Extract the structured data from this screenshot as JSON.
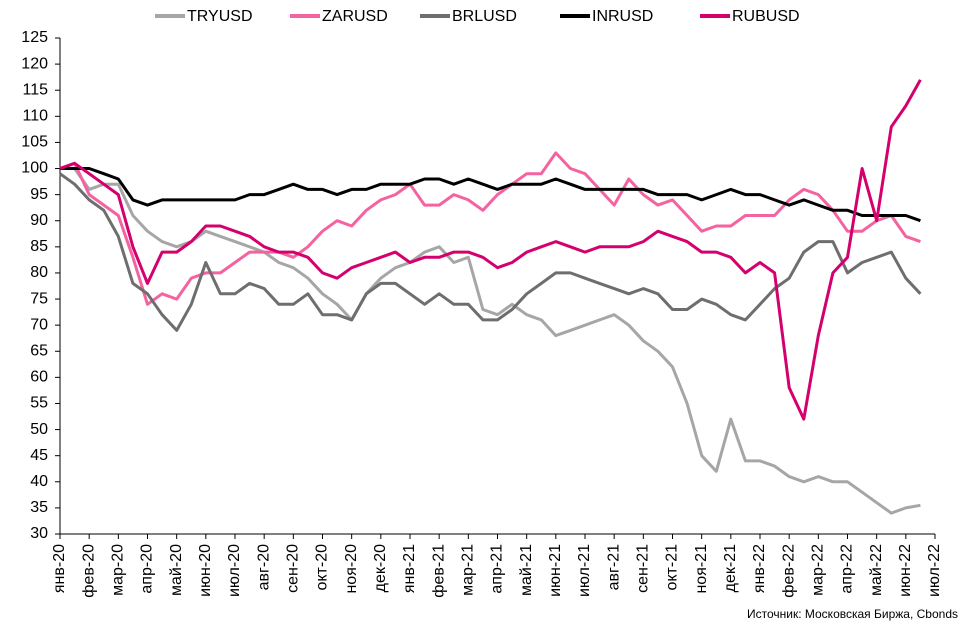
{
  "chart_data": {
    "type": "line",
    "source": "Источник: Московская Биржа, Cbonds",
    "x": [
      0,
      0.5,
      1,
      1.5,
      2,
      2.5,
      3,
      3.5,
      4,
      4.5,
      5,
      5.5,
      6,
      6.5,
      7,
      7.5,
      8,
      8.5,
      9,
      9.5,
      10,
      10.5,
      11,
      11.5,
      12,
      12.5,
      13,
      13.5,
      14,
      14.5,
      15,
      15.5,
      16,
      16.5,
      17,
      17.5,
      18,
      18.5,
      19,
      19.5,
      20,
      20.5,
      21,
      21.5,
      22,
      22.5,
      23,
      23.5,
      24,
      24.5,
      25,
      25.5,
      26,
      26.5,
      27,
      27.5,
      28,
      28.5,
      29,
      29.5
    ],
    "series": [
      {
        "name": "TRYUSD",
        "color": "#a6a6a6",
        "values": [
          100,
          100,
          96,
          97,
          97,
          91,
          88,
          86,
          85,
          86,
          88,
          87,
          86,
          85,
          84,
          82,
          81,
          79,
          76,
          74,
          71,
          76,
          79,
          81,
          82,
          84,
          85,
          82,
          83,
          73,
          72,
          74,
          72,
          71,
          68,
          69,
          70,
          71,
          72,
          70,
          67,
          65,
          62,
          55,
          45,
          42,
          52,
          44,
          44,
          43,
          41,
          40,
          41,
          40,
          40,
          38,
          36,
          34,
          35,
          35.5
        ]
      },
      {
        "name": "ZARUSD",
        "color": "#f4639f",
        "values": [
          100,
          101,
          95,
          93,
          91,
          83,
          74,
          76,
          75,
          79,
          80,
          80,
          82,
          84,
          84,
          84,
          83,
          85,
          88,
          90,
          89,
          92,
          94,
          95,
          97,
          93,
          93,
          95,
          94,
          92,
          95,
          97,
          99,
          99,
          103,
          100,
          99,
          96,
          93,
          98,
          95,
          93,
          94,
          91,
          88,
          89,
          89,
          91,
          91,
          91,
          94,
          96,
          95,
          92,
          88,
          88,
          90,
          91,
          87,
          86
        ]
      },
      {
        "name": "BRLUSD",
        "color": "#6e6e6e",
        "values": [
          99,
          97,
          94,
          92,
          87,
          78,
          76,
          72,
          69,
          74,
          82,
          76,
          76,
          78,
          77,
          74,
          74,
          76,
          72,
          72,
          71,
          76,
          78,
          78,
          76,
          74,
          76,
          74,
          74,
          71,
          71,
          73,
          76,
          78,
          80,
          80,
          79,
          78,
          77,
          76,
          77,
          76,
          73,
          73,
          75,
          74,
          72,
          71,
          74,
          77,
          79,
          84,
          86,
          86,
          80,
          82,
          83,
          84,
          79,
          76
        ]
      },
      {
        "name": "INRUSD",
        "color": "#000000",
        "values": [
          100,
          100,
          100,
          99,
          98,
          94,
          93,
          94,
          94,
          94,
          94,
          94,
          94,
          95,
          95,
          96,
          97,
          96,
          96,
          95,
          96,
          96,
          97,
          97,
          97,
          98,
          98,
          97,
          98,
          97,
          96,
          97,
          97,
          97,
          98,
          97,
          96,
          96,
          96,
          96,
          96,
          95,
          95,
          95,
          94,
          95,
          96,
          95,
          95,
          94,
          93,
          94,
          93,
          92,
          92,
          91,
          91,
          91,
          91,
          90
        ]
      },
      {
        "name": "RUBUSD",
        "color": "#d4006e",
        "values": [
          100,
          101,
          99,
          97,
          95,
          85,
          78,
          84,
          84,
          86,
          89,
          89,
          88,
          87,
          85,
          84,
          84,
          83,
          80,
          79,
          81,
          82,
          83,
          84,
          82,
          83,
          83,
          84,
          84,
          83,
          81,
          82,
          84,
          85,
          86,
          85,
          84,
          85,
          85,
          85,
          86,
          88,
          87,
          86,
          84,
          84,
          83,
          80,
          82,
          80,
          58,
          52,
          68,
          80,
          83,
          100,
          90,
          108,
          112,
          117
        ]
      }
    ],
    "xlim": [
      0,
      30
    ],
    "xticks": [
      {
        "value": 0,
        "label": "янв-20"
      },
      {
        "value": 1,
        "label": "фев-20"
      },
      {
        "value": 2,
        "label": "мар-20"
      },
      {
        "value": 3,
        "label": "апр-20"
      },
      {
        "value": 4,
        "label": "май-20"
      },
      {
        "value": 5,
        "label": "июн-20"
      },
      {
        "value": 6,
        "label": "июл-20"
      },
      {
        "value": 7,
        "label": "авг-20"
      },
      {
        "value": 8,
        "label": "сен-20"
      },
      {
        "value": 9,
        "label": "окт-20"
      },
      {
        "value": 10,
        "label": "ноя-20"
      },
      {
        "value": 11,
        "label": "дек-20"
      },
      {
        "value": 12,
        "label": "янв-21"
      },
      {
        "value": 13,
        "label": "фев-21"
      },
      {
        "value": 14,
        "label": "мар-21"
      },
      {
        "value": 15,
        "label": "апр-21"
      },
      {
        "value": 16,
        "label": "май-21"
      },
      {
        "value": 17,
        "label": "июн-21"
      },
      {
        "value": 18,
        "label": "июл-21"
      },
      {
        "value": 19,
        "label": "авг-21"
      },
      {
        "value": 20,
        "label": "сен-21"
      },
      {
        "value": 21,
        "label": "окт-21"
      },
      {
        "value": 22,
        "label": "ноя-21"
      },
      {
        "value": 23,
        "label": "дек-21"
      },
      {
        "value": 24,
        "label": "янв-22"
      },
      {
        "value": 25,
        "label": "фев-22"
      },
      {
        "value": 26,
        "label": "мар-22"
      },
      {
        "value": 27,
        "label": "апр-22"
      },
      {
        "value": 28,
        "label": "май-22"
      },
      {
        "value": 29,
        "label": "июн-22"
      },
      {
        "value": 30,
        "label": "июл-22"
      }
    ],
    "ylim": [
      30,
      125
    ],
    "yticks": [
      30,
      35,
      40,
      45,
      50,
      55,
      60,
      65,
      70,
      75,
      80,
      85,
      90,
      95,
      100,
      105,
      110,
      115,
      120,
      125
    ],
    "grid": false
  }
}
